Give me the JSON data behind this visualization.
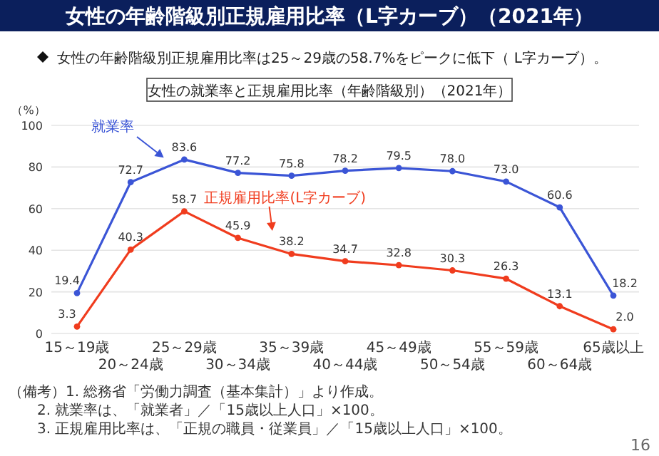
{
  "chart_data": {
    "type": "line",
    "title": "女性の年齢階級別正規雇用比率（L字カーブ）（2021年）",
    "subtitle": "女性の年齢階級別正規雇用比率は25～29歳の58.7%をピークに低下（ L字カーブ）。",
    "legend_title": "女性の就業率と正規雇用比率（年齢階級別）（2021年）",
    "ylabel": "（%）",
    "categories": [
      "15～19歳",
      "20～24歳",
      "25～29歳",
      "30～34歳",
      "35～39歳",
      "40～44歳",
      "45～49歳",
      "50～54歳",
      "55～59歳",
      "60～64歳",
      "65歳以上"
    ],
    "series": [
      {
        "name": "就業率",
        "color": "#3b55d6",
        "values": [
          19.4,
          72.7,
          83.6,
          77.2,
          75.8,
          78.2,
          79.5,
          78.0,
          73.0,
          60.6,
          18.2
        ],
        "value_labels": [
          "19.4",
          "72.7",
          "83.6",
          "77.2",
          "75.8",
          "78.2",
          "79.5",
          "78.0",
          "73.0",
          "60.6",
          "18.2"
        ]
      },
      {
        "name": "正規雇用比率(L字カーブ)",
        "color": "#f03c1e",
        "values": [
          3.3,
          40.3,
          58.7,
          45.9,
          38.2,
          34.7,
          32.8,
          30.3,
          26.3,
          13.1,
          2.0
        ],
        "value_labels": [
          "3.3",
          "40.3",
          "58.7",
          "45.9",
          "38.2",
          "34.7",
          "32.8",
          "30.3",
          "26.3",
          "13.1",
          "2.0"
        ]
      }
    ],
    "ylim": [
      0,
      100
    ],
    "yticks": [
      0,
      20,
      40,
      60,
      80,
      100
    ],
    "grid": "y",
    "legend": false,
    "marker": "circle",
    "line_style": "solid",
    "annotations": [
      "（備考）1. 総務省「労働力調査（基本集計）」より作成。",
      "2. 就業率は、「就業者」／「15歳以上人口」×100。",
      "3. 正規雇用比率は、「正規の職員・従業員」／「15歳以上人口」×100。",
      "16"
    ]
  }
}
